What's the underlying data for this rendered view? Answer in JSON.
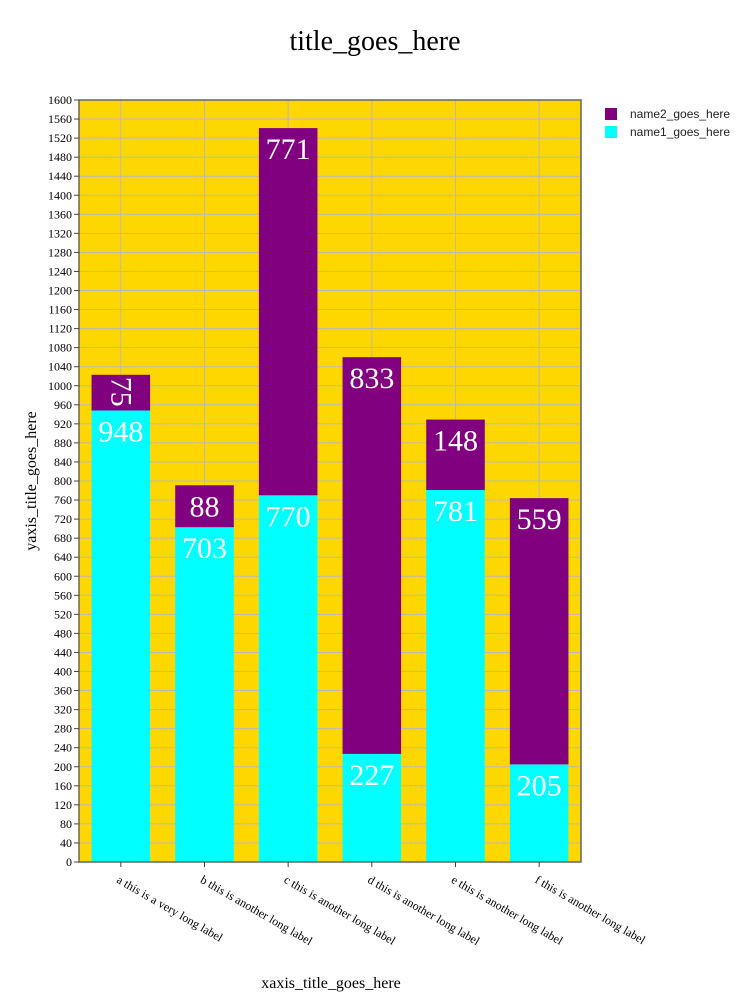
{
  "chart_data": {
    "type": "bar",
    "barmode": "stack",
    "title": "title_goes_here",
    "xlabel": "xaxis_title_goes_here",
    "ylabel": "yaxis_title_goes_here",
    "categories": [
      "a this is a very long label",
      "b this is another long label",
      "c this is another long label",
      "d this is another long label",
      "e this is another long label",
      "f this is another long label"
    ],
    "series": [
      {
        "name": "name1_goes_here",
        "values": [
          948,
          703,
          770,
          227,
          781,
          205
        ],
        "color": "#00ffff"
      },
      {
        "name": "name2_goes_here",
        "values": [
          75,
          88,
          771,
          833,
          148,
          559
        ],
        "color": "#800080"
      }
    ],
    "ylim": [
      0,
      1600
    ],
    "ytick_step": 40,
    "plot_background": "#ffd700",
    "grid": true,
    "grid_color": "#b8b8b8",
    "data_label_color": "#ffffff",
    "legend_position": "top-right, outside plot"
  }
}
